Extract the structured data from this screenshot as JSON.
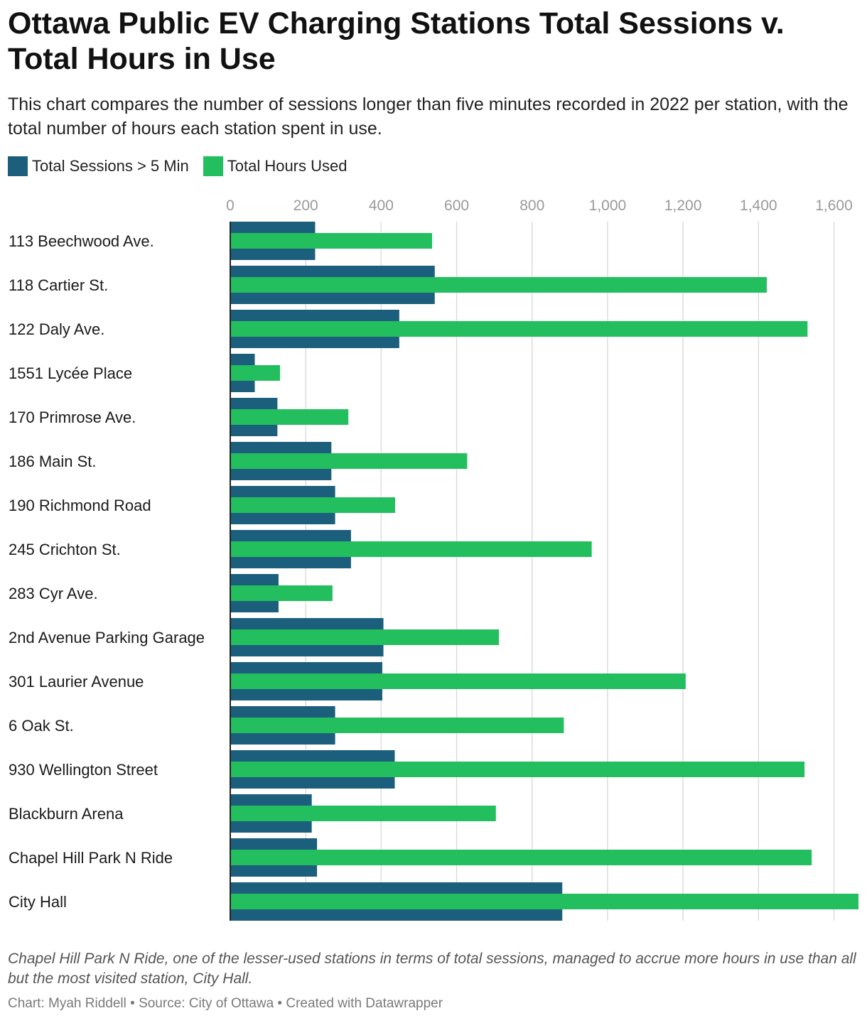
{
  "header": {
    "title": "Ottawa Public EV Charging Stations Total Sessions v. Total Hours in Use",
    "subtitle": "This chart compares the number of sessions longer than five minutes recorded in 2022 per station, with the total number of hours each station spent in use."
  },
  "footer": {
    "note": "Chapel Hill Park N Ride, one of the lesser-used stations in terms of total sessions, managed to accrue more hours in use than all but the most visited station, City Hall.",
    "chart_by": "Chart: Myah Riddell",
    "separator": " • ",
    "source": "Source: City of Ottawa",
    "created_with": "Created with Datawrapper"
  },
  "colors": {
    "sessions": "#1c5f7c",
    "hours": "#23be5e",
    "grid": "#dcdcdc",
    "axis": "#222222",
    "tick_label": "#9a9a9a"
  },
  "chart_data": {
    "type": "bar",
    "orientation": "horizontal",
    "categories": [
      "113 Beechwood Ave.",
      "118 Cartier St.",
      "122 Daly Ave.",
      "1551 Lycée Place",
      "170 Primrose Ave.",
      "186 Main St.",
      "190 Richmond Road",
      "245 Crichton St.",
      "283 Cyr Ave.",
      "2nd Avenue Parking Garage",
      "301 Laurier Avenue",
      "6 Oak St.",
      "930 Wellington Street",
      "Blackburn Arena",
      "Chapel Hill Park N Ride",
      "City Hall"
    ],
    "series": [
      {
        "name": "Total Sessions > 5 Min",
        "values": [
          225,
          542,
          448,
          65,
          125,
          268,
          278,
          320,
          128,
          406,
          403,
          278,
          436,
          216,
          230,
          880
        ]
      },
      {
        "name": "Total Hours Used",
        "values": [
          535,
          1422,
          1530,
          132,
          313,
          628,
          437,
          958,
          271,
          712,
          1207,
          884,
          1522,
          704,
          1541,
          1665
        ]
      }
    ],
    "xlim": [
      0,
      1665
    ],
    "ticks": [
      0,
      200,
      400,
      600,
      800,
      1000,
      1200,
      1400,
      1600
    ],
    "tick_labels": [
      "0",
      "200",
      "400",
      "600",
      "800",
      "1,000",
      "1,200",
      "1,400",
      "1,600"
    ],
    "legend_position": "top-left",
    "grid": true
  }
}
